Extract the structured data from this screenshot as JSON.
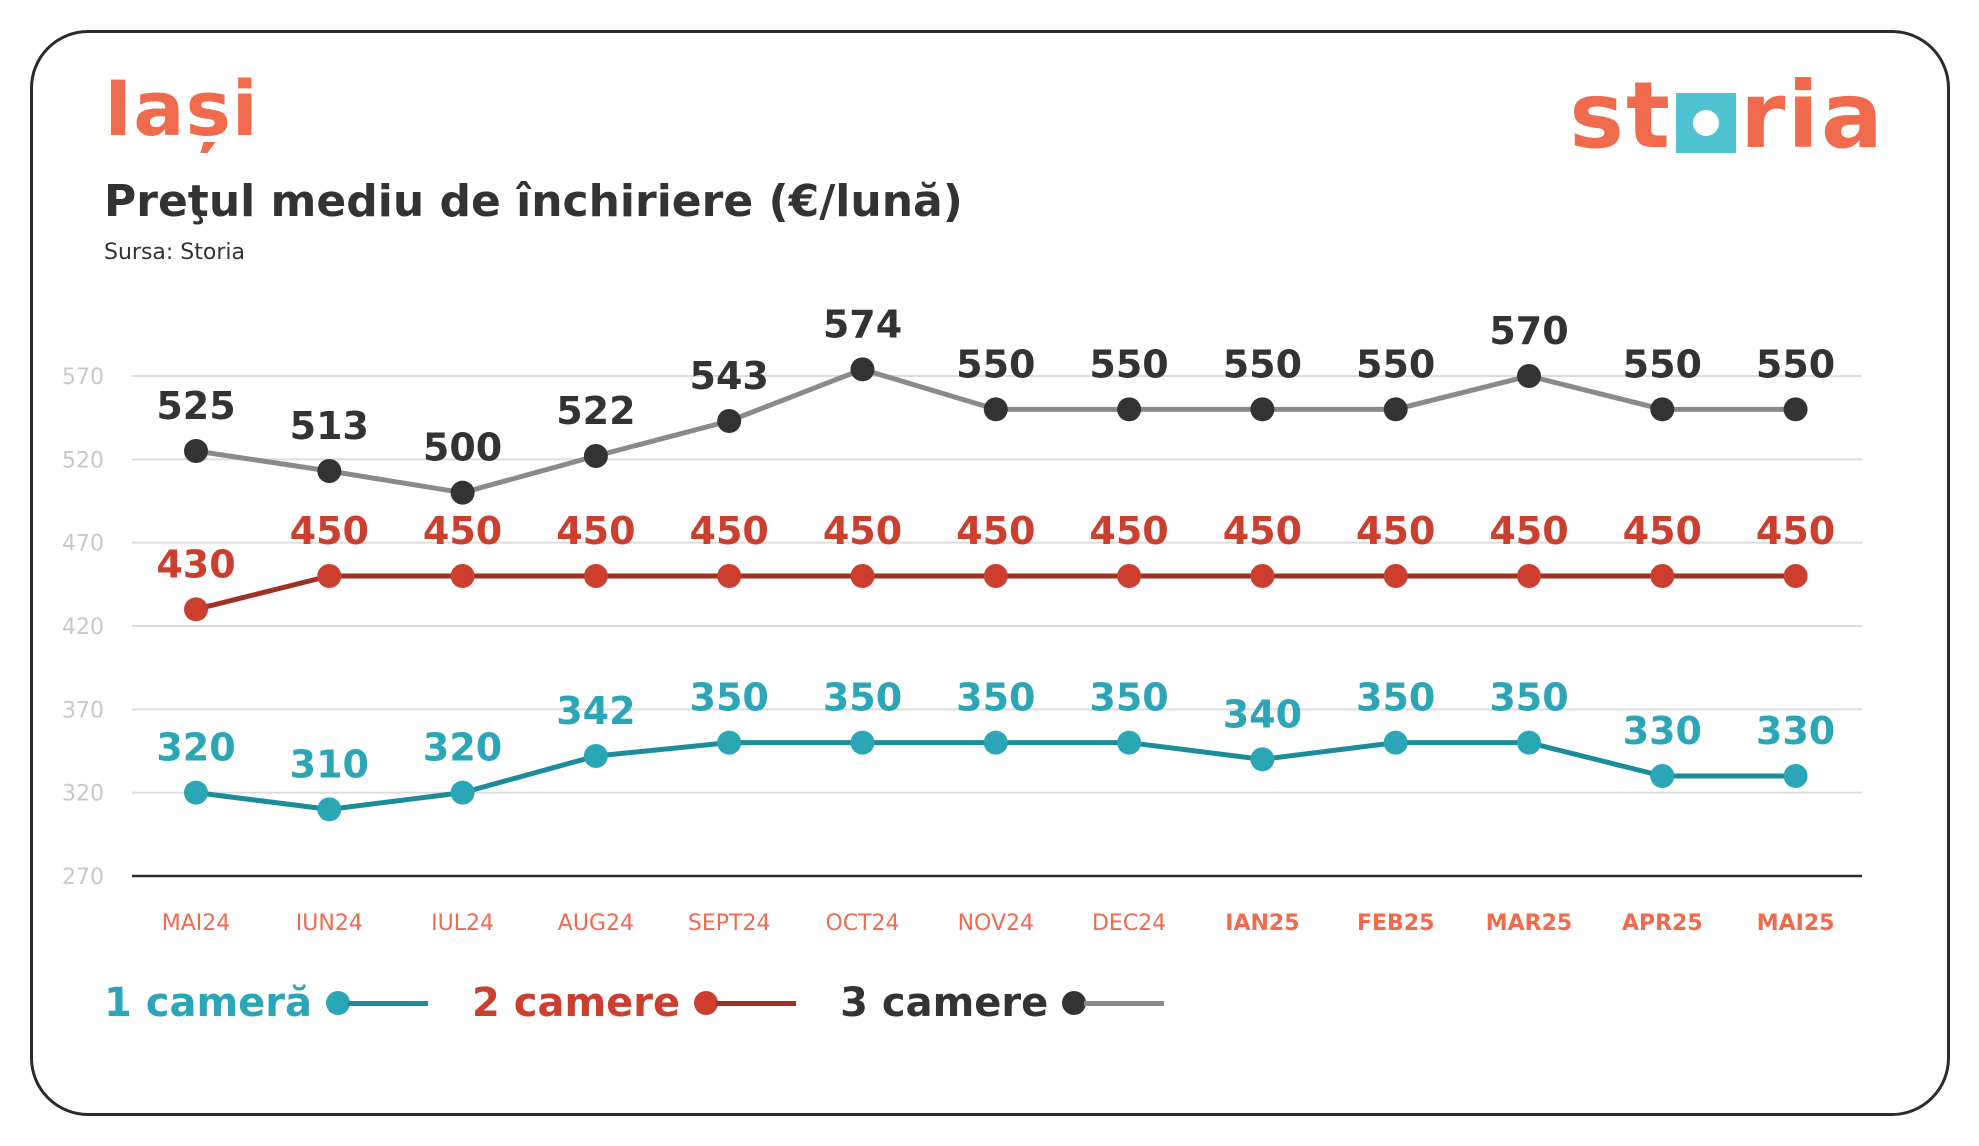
{
  "header": {
    "city": "Iași",
    "subtitle": "Preţul mediu de închiriere (€/lună)",
    "source": "Sursa: Storia"
  },
  "logo": {
    "left": "st",
    "right": "ria"
  },
  "chart_data": {
    "type": "line",
    "categories": [
      "MAI24",
      "IUN24",
      "IUL24",
      "AUG24",
      "SEPT24",
      "OCT24",
      "NOV24",
      "DEC24",
      "IAN25",
      "FEB25",
      "MAR25",
      "APR25",
      "MAI25"
    ],
    "bold_categories": [
      "IAN25",
      "FEB25",
      "MAR25",
      "APR25",
      "MAI25"
    ],
    "y_ticks": [
      270,
      320,
      370,
      420,
      470,
      520,
      570
    ],
    "ylim": [
      270,
      570
    ],
    "grid": true,
    "legend_position": "bottom-left",
    "series": [
      {
        "name": "1 cameră",
        "values": [
          320,
          310,
          320,
          342,
          350,
          350,
          350,
          350,
          340,
          350,
          350,
          330,
          330
        ],
        "line_color": "#1c8b9a",
        "dot_color": "#2aa6b6",
        "label_color": "#2aa6b6"
      },
      {
        "name": "2 camere",
        "values": [
          430,
          450,
          450,
          450,
          450,
          450,
          450,
          450,
          450,
          450,
          450,
          450,
          450
        ],
        "line_color": "#9e3124",
        "dot_color": "#cc3f2f",
        "label_color": "#cc3f2f"
      },
      {
        "name": "3 camere",
        "values": [
          525,
          513,
          500,
          522,
          543,
          574,
          550,
          550,
          550,
          550,
          570,
          550,
          550
        ],
        "line_color": "#8a8a8e",
        "dot_color": "#333333",
        "label_color": "#333333"
      }
    ]
  },
  "colors": {
    "brand": "#f06a4e",
    "accent_teal": "#4fc3d1",
    "axis": "#2b2b2b",
    "grid": "#dddddd"
  }
}
